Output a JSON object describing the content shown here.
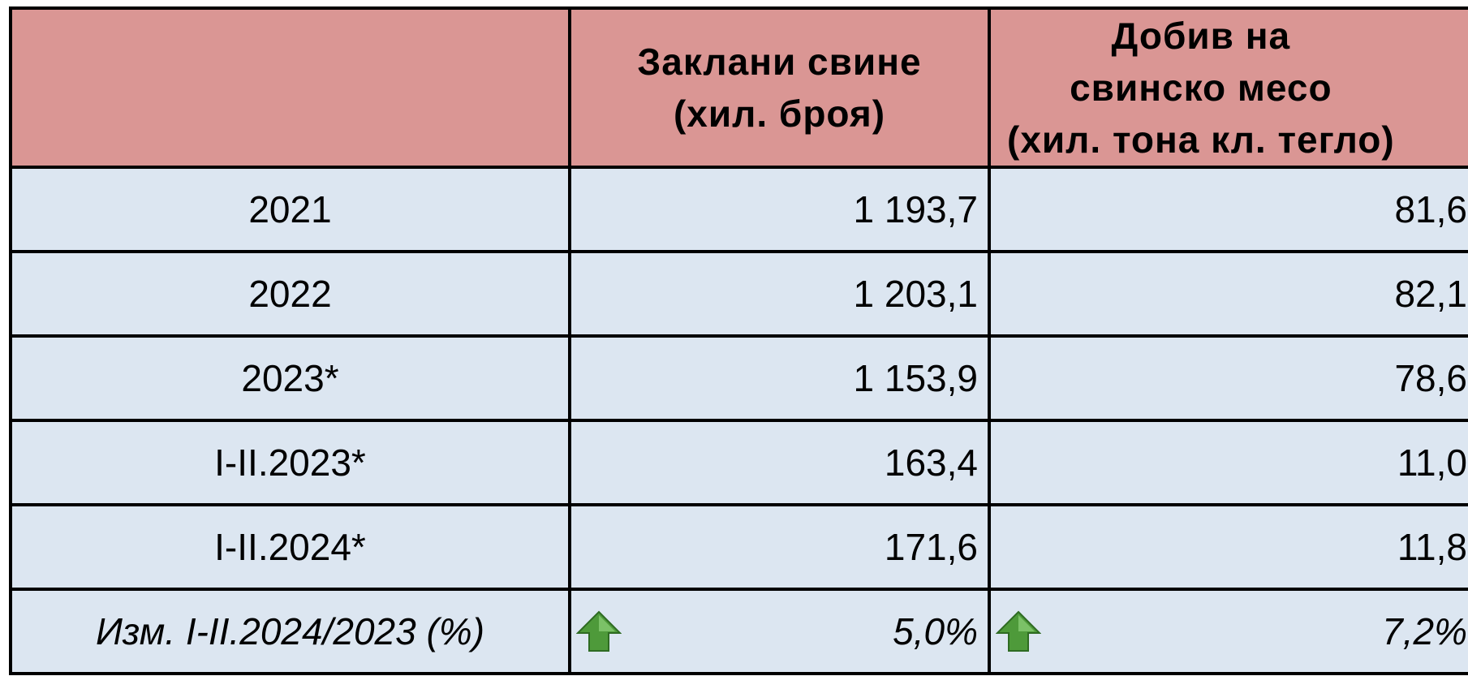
{
  "table": {
    "header": [
      [
        "Заклани свине",
        "(хил. броя)"
      ],
      [
        "Добив на",
        "свинско месо",
        "(хил. тона кл. тегло)"
      ]
    ],
    "rows": [
      [
        "2021",
        "1 193,7",
        "81,6"
      ],
      [
        "2022",
        "1 203,1",
        "82,1"
      ],
      [
        "2023*",
        "1 153,9",
        "78,6"
      ],
      [
        "I-II.2023*",
        "163,4",
        "11,0"
      ],
      [
        "I-II.2024*",
        "171,6",
        "11,8"
      ],
      [
        "Изм. I-II.2024/2023 (%)",
        "5,0%",
        "7,2%"
      ]
    ]
  }
}
